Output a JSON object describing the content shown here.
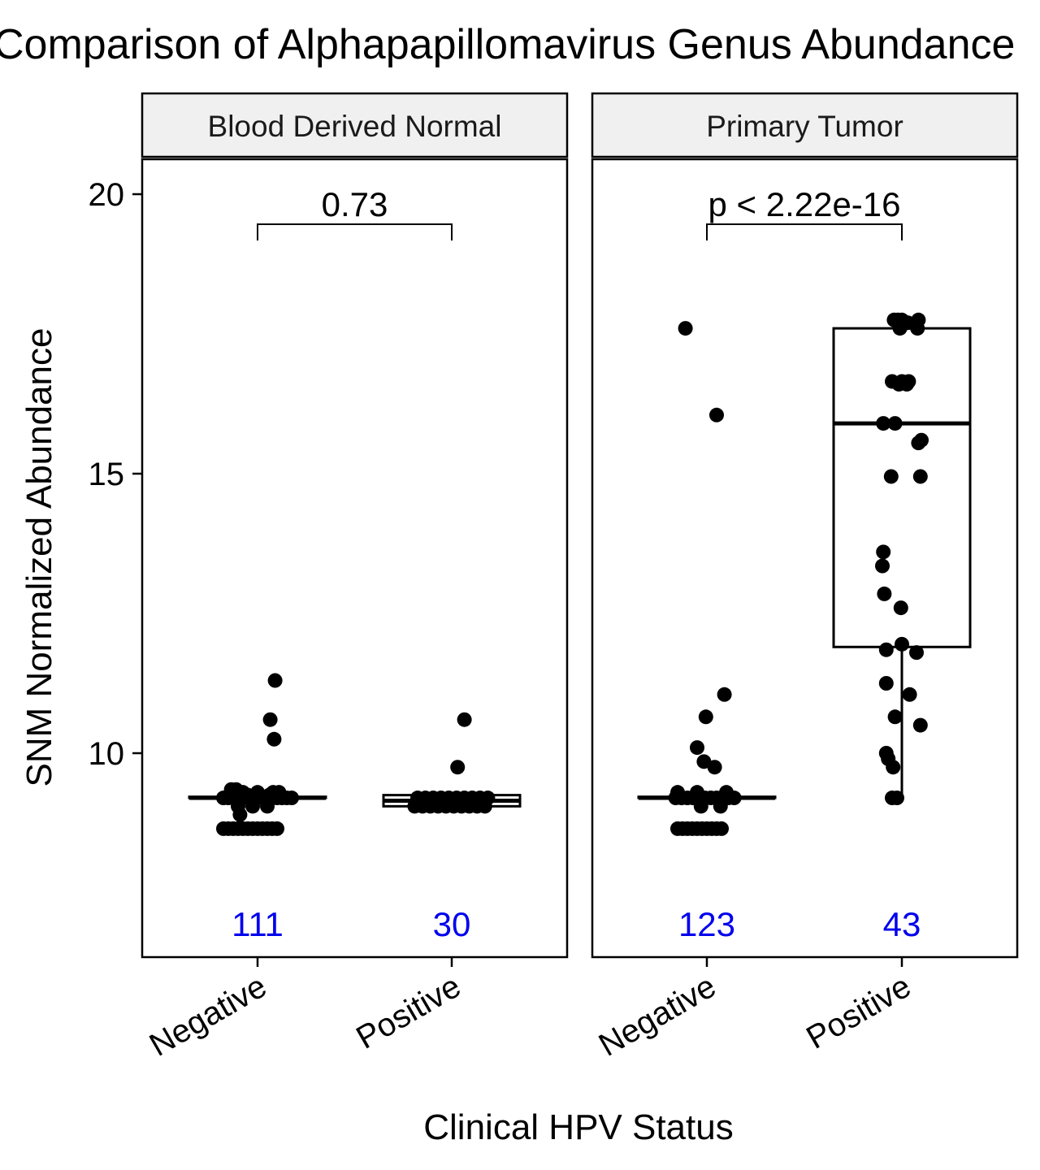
{
  "chart_data": {
    "type": "box",
    "title": "Comparison of Alphapapillomavirus Genus Abundance",
    "xlabel": "Clinical HPV Status",
    "ylabel": "SNM Normalized Abundance",
    "ylim": [
      6.5,
      20.5
    ],
    "yticks": [
      10,
      15,
      20
    ],
    "categories": [
      "Negative",
      "Positive"
    ],
    "grid": false,
    "legend": "none",
    "colors": {
      "points": "#000000",
      "counts": "#0000ee",
      "strip_fill": "#f0f0f0"
    },
    "panels": [
      {
        "strip": "Blood Derived Normal",
        "p_value": "0.73",
        "groups": [
          {
            "category": "Negative",
            "n": "111",
            "box": {
              "q1": 9.2,
              "median": 9.2,
              "q3": 9.22,
              "whisker_low": 9.2,
              "whisker_high": 9.22
            },
            "points": [
              [
                -0.35,
                9.2
              ],
              [
                -0.3,
                9.2
              ],
              [
                -0.25,
                9.2
              ],
              [
                -0.2,
                9.2
              ],
              [
                -0.15,
                9.2
              ],
              [
                -0.1,
                9.2
              ],
              [
                -0.05,
                9.2
              ],
              [
                0.0,
                9.2
              ],
              [
                0.05,
                9.2
              ],
              [
                0.1,
                9.2
              ],
              [
                0.15,
                9.2
              ],
              [
                0.2,
                9.2
              ],
              [
                0.25,
                9.2
              ],
              [
                0.3,
                9.2
              ],
              [
                0.35,
                9.2
              ],
              [
                -0.27,
                9.35
              ],
              [
                -0.22,
                9.35
              ],
              [
                -0.15,
                9.3
              ],
              [
                0.0,
                9.3
              ],
              [
                0.16,
                9.3
              ],
              [
                0.22,
                9.3
              ],
              [
                -0.2,
                9.05
              ],
              [
                -0.05,
                9.05
              ],
              [
                0.1,
                9.05
              ],
              [
                -0.1,
                9.25
              ],
              [
                0.12,
                9.25
              ],
              [
                -0.18,
                8.9
              ],
              [
                -0.35,
                8.65
              ],
              [
                -0.3,
                8.65
              ],
              [
                -0.25,
                8.65
              ],
              [
                -0.2,
                8.65
              ],
              [
                -0.15,
                8.65
              ],
              [
                -0.1,
                8.65
              ],
              [
                -0.05,
                8.65
              ],
              [
                0.0,
                8.65
              ],
              [
                0.05,
                8.65
              ],
              [
                0.1,
                8.65
              ],
              [
                0.15,
                8.65
              ],
              [
                0.2,
                8.65
              ],
              [
                0.17,
                10.25
              ],
              [
                0.13,
                10.6
              ],
              [
                0.18,
                11.3
              ]
            ]
          },
          {
            "category": "Positive",
            "n": "30",
            "box": {
              "q1": 9.05,
              "median": 9.15,
              "q3": 9.25,
              "whisker_low": 9.05,
              "whisker_high": 9.25
            },
            "points": [
              [
                -0.38,
                9.05
              ],
              [
                -0.3,
                9.05
              ],
              [
                -0.22,
                9.05
              ],
              [
                -0.14,
                9.05
              ],
              [
                -0.06,
                9.05
              ],
              [
                0.02,
                9.05
              ],
              [
                0.1,
                9.05
              ],
              [
                0.18,
                9.05
              ],
              [
                0.26,
                9.05
              ],
              [
                0.34,
                9.05
              ],
              [
                -0.35,
                9.2
              ],
              [
                -0.27,
                9.2
              ],
              [
                -0.19,
                9.2
              ],
              [
                -0.11,
                9.2
              ],
              [
                -0.03,
                9.2
              ],
              [
                0.05,
                9.2
              ],
              [
                0.13,
                9.2
              ],
              [
                0.21,
                9.2
              ],
              [
                0.29,
                9.2
              ],
              [
                0.37,
                9.2
              ],
              [
                0.06,
                9.75
              ],
              [
                0.13,
                10.6
              ]
            ]
          }
        ]
      },
      {
        "strip": "Primary Tumor",
        "p_value": "p < 2.22e-16",
        "groups": [
          {
            "category": "Negative",
            "n": "123",
            "box": {
              "q1": 9.2,
              "median": 9.2,
              "q3": 9.22,
              "whisker_low": 9.2,
              "whisker_high": 9.22
            },
            "points": [
              [
                -0.22,
                17.6
              ],
              [
                0.1,
                16.05
              ],
              [
                0.18,
                11.05
              ],
              [
                -0.01,
                10.65
              ],
              [
                -0.1,
                10.1
              ],
              [
                -0.03,
                9.85
              ],
              [
                0.08,
                9.75
              ],
              [
                -0.32,
                9.2
              ],
              [
                -0.26,
                9.2
              ],
              [
                -0.2,
                9.2
              ],
              [
                -0.14,
                9.2
              ],
              [
                -0.08,
                9.2
              ],
              [
                -0.02,
                9.2
              ],
              [
                0.04,
                9.2
              ],
              [
                0.1,
                9.2
              ],
              [
                0.16,
                9.2
              ],
              [
                0.22,
                9.2
              ],
              [
                0.28,
                9.2
              ],
              [
                -0.3,
                9.3
              ],
              [
                -0.1,
                9.3
              ],
              [
                0.2,
                9.3
              ],
              [
                -0.06,
                9.05
              ],
              [
                0.14,
                9.05
              ],
              [
                -0.3,
                8.65
              ],
              [
                -0.25,
                8.65
              ],
              [
                -0.2,
                8.65
              ],
              [
                -0.15,
                8.65
              ],
              [
                -0.1,
                8.65
              ],
              [
                -0.05,
                8.65
              ],
              [
                0.0,
                8.65
              ],
              [
                0.05,
                8.65
              ],
              [
                0.1,
                8.65
              ],
              [
                0.15,
                8.65
              ]
            ]
          },
          {
            "category": "Positive",
            "n": "43",
            "box": {
              "q1": 11.9,
              "median": 15.9,
              "q3": 17.6,
              "whisker_low": 9.2,
              "whisker_high": 17.6
            },
            "points": [
              [
                -0.08,
                17.75
              ],
              [
                -0.04,
                17.75
              ],
              [
                0.0,
                17.75
              ],
              [
                0.06,
                17.7
              ],
              [
                0.15,
                17.7
              ],
              [
                0.17,
                17.75
              ],
              [
                -0.02,
                17.6
              ],
              [
                0.16,
                17.6
              ],
              [
                -0.1,
                16.65
              ],
              [
                -0.03,
                16.6
              ],
              [
                0.0,
                16.65
              ],
              [
                0.05,
                16.6
              ],
              [
                0.07,
                16.65
              ],
              [
                -0.19,
                15.9
              ],
              [
                -0.07,
                15.9
              ],
              [
                0.2,
                15.6
              ],
              [
                0.17,
                15.55
              ],
              [
                0.19,
                14.95
              ],
              [
                -0.11,
                14.95
              ],
              [
                -0.19,
                13.6
              ],
              [
                -0.2,
                13.35
              ],
              [
                -0.18,
                12.85
              ],
              [
                -0.01,
                12.6
              ],
              [
                -0.16,
                11.85
              ],
              [
                0.0,
                11.95
              ],
              [
                0.15,
                11.8
              ],
              [
                -0.16,
                11.25
              ],
              [
                0.08,
                11.05
              ],
              [
                -0.07,
                10.65
              ],
              [
                0.19,
                10.5
              ],
              [
                -0.16,
                10.0
              ],
              [
                -0.14,
                9.9
              ],
              [
                -0.09,
                9.75
              ],
              [
                -0.05,
                9.2
              ],
              [
                -0.1,
                9.2
              ]
            ]
          }
        ]
      }
    ]
  }
}
